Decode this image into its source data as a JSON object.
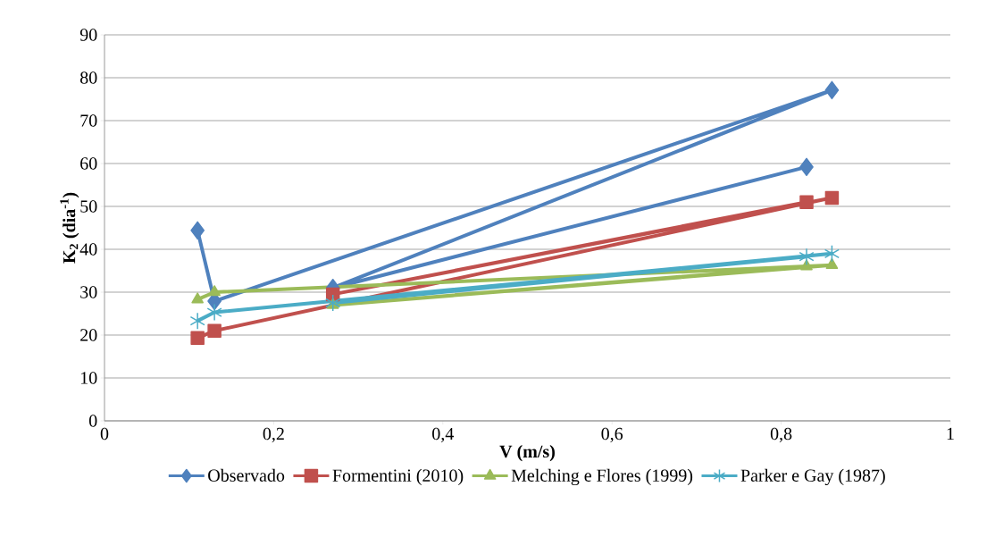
{
  "chart_data": {
    "type": "line",
    "xlabel": "V (m/s)",
    "ylabel": "K$_{2}$ (dia$^{-1}$)",
    "xlim": [
      0,
      1
    ],
    "ylim": [
      0,
      90
    ],
    "xticks": [
      0,
      {
        "value": 0.2,
        "label": "0,2"
      },
      {
        "value": 0.4,
        "label": "0,4"
      },
      {
        "value": 0.6,
        "label": "0,6"
      },
      {
        "value": 0.8,
        "label": "0,8"
      },
      1
    ],
    "yticks": [
      0,
      10,
      20,
      30,
      40,
      50,
      60,
      70,
      80,
      90
    ],
    "grid": "y",
    "legend": "bottom",
    "line_style": "solid",
    "x": [
      0.11,
      0.13,
      0.86,
      0.27,
      0.83
    ],
    "series": [
      {
        "name": "Observado",
        "color": "#4f81bd",
        "marker": "diamond",
        "values": [
          44.4,
          27.9,
          77.1,
          31,
          59.2
        ]
      },
      {
        "name": "Formentini (2010)",
        "color": "#c0504d",
        "marker": "square",
        "values": [
          19.3,
          21,
          52,
          29.5,
          51
        ]
      },
      {
        "name": "Melching e Flores (1999)",
        "color": "#9bbb59",
        "marker": "triangle",
        "values": [
          28.3,
          30,
          36.3,
          27,
          36
        ]
      },
      {
        "name": "Parker e Gay (1987)",
        "color": "#4bacc6",
        "marker": "cross",
        "values": [
          23.3,
          25.3,
          39,
          27.5,
          38.3
        ]
      }
    ]
  }
}
